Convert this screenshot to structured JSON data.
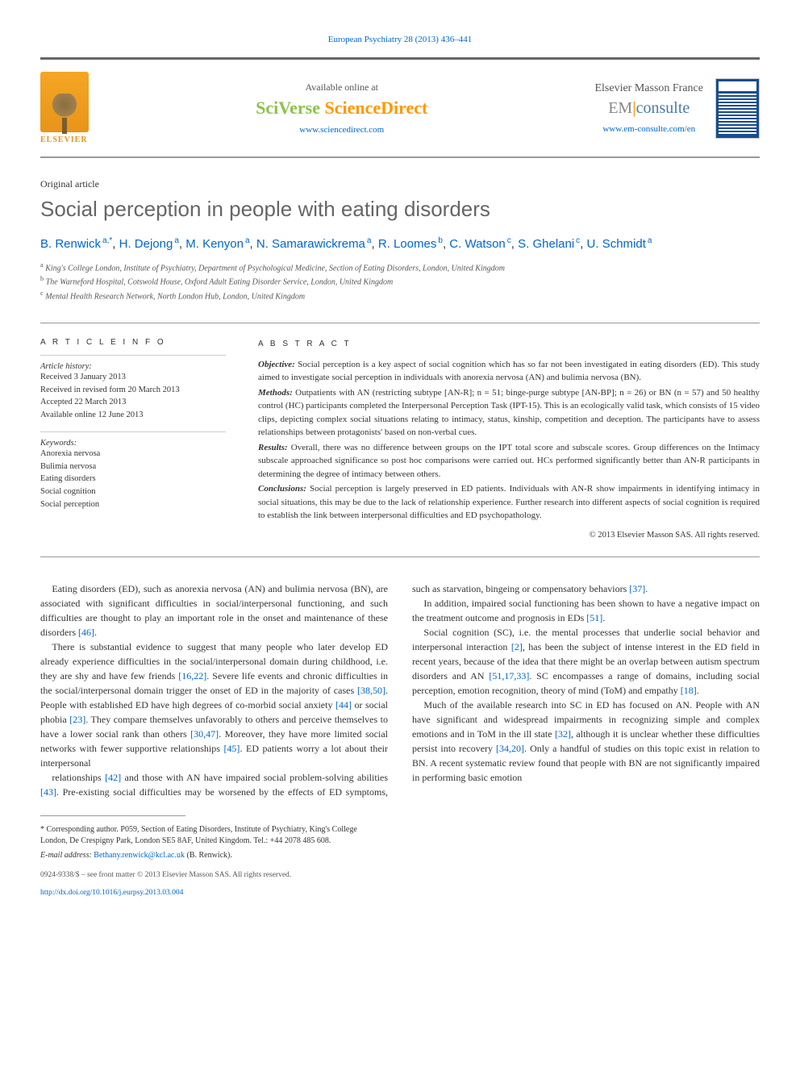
{
  "header": {
    "journal_ref": "European Psychiatry 28 (2013) 436–441"
  },
  "banner": {
    "elsevier": "ELSEVIER",
    "available": "Available online at",
    "sciverse_sci": "SciVerse ",
    "sciverse_direct": "ScienceDirect",
    "sciverse_url": "www.sciencedirect.com",
    "em_brand": "Elsevier Masson France",
    "em_em": "EM",
    "em_consulte": "consulte",
    "em_url": "www.em-consulte.com/en"
  },
  "article": {
    "type": "Original article",
    "title": "Social perception in people with eating disorders",
    "authors_html": "B. Renwick",
    "authors": [
      {
        "name": "B. Renwick",
        "aff": "a,*"
      },
      {
        "name": "H. Dejong",
        "aff": "a"
      },
      {
        "name": "M. Kenyon",
        "aff": "a"
      },
      {
        "name": "N. Samarawickrema",
        "aff": "a"
      },
      {
        "name": "R. Loomes",
        "aff": "b"
      },
      {
        "name": "C. Watson",
        "aff": "c"
      },
      {
        "name": "S. Ghelani",
        "aff": "c"
      },
      {
        "name": "U. Schmidt",
        "aff": "a"
      }
    ],
    "affiliations": {
      "a": "King's College London, Institute of Psychiatry, Department of Psychological Medicine, Section of Eating Disorders, London, United Kingdom",
      "b": "The Warneford Hospital, Cotswold House, Oxford Adult Eating Disorder Service, London, United Kingdom",
      "c": "Mental Health Research Network, North London Hub, London, United Kingdom"
    }
  },
  "info": {
    "heading": "A R T I C L E   I N F O",
    "history_label": "Article history:",
    "history": [
      "Received 3 January 2013",
      "Received in revised form 20 March 2013",
      "Accepted 22 March 2013",
      "Available online 12 June 2013"
    ],
    "keywords_label": "Keywords:",
    "keywords": [
      "Anorexia nervosa",
      "Bulimia nervosa",
      "Eating disorders",
      "Social cognition",
      "Social perception"
    ]
  },
  "abstract": {
    "heading": "A B S T R A C T",
    "sections": [
      {
        "label": "Objective:",
        "text": "Social perception is a key aspect of social cognition which has so far not been investigated in eating disorders (ED). This study aimed to investigate social perception in individuals with anorexia nervosa (AN) and bulimia nervosa (BN)."
      },
      {
        "label": "Methods:",
        "text": "Outpatients with AN (restricting subtype [AN-R]; n = 51; binge-purge subtype [AN-BP]; n = 26) or BN (n = 57) and 50 healthy control (HC) participants completed the Interpersonal Perception Task (IPT-15). This is an ecologically valid task, which consists of 15 video clips, depicting complex social situations relating to intimacy, status, kinship, competition and deception. The participants have to assess relationships between protagonists' based on non-verbal cues."
      },
      {
        "label": "Results:",
        "text": "Overall, there was no difference between groups on the IPT total score and subscale scores. Group differences on the Intimacy subscale approached significance so post hoc comparisons were carried out. HCs performed significantly better than AN-R participants in determining the degree of intimacy between others."
      },
      {
        "label": "Conclusions:",
        "text": "Social perception is largely preserved in ED patients. Individuals with AN-R show impairments in identifying intimacy in social situations, this may be due to the lack of relationship experience. Further research into different aspects of social cognition is required to establish the link between interpersonal difficulties and ED psychopathology."
      }
    ],
    "copyright": "© 2013 Elsevier Masson SAS. All rights reserved."
  },
  "body": {
    "paragraphs": [
      "Eating disorders (ED), such as anorexia nervosa (AN) and bulimia nervosa (BN), are associated with significant difficulties in social/interpersonal functioning, and such difficulties are thought to play an important role in the onset and maintenance of these disorders [46].",
      "There is substantial evidence to suggest that many people who later develop ED already experience difficulties in the social/interpersonal domain during childhood, i.e. they are shy and have few friends [16,22]. Severe life events and chronic difficulties in the social/interpersonal domain trigger the onset of ED in the majority of cases [38,50]. People with established ED have high degrees of co-morbid social anxiety [44] or social phobia [23]. They compare themselves unfavorably to others and perceive themselves to have a lower social rank than others [30,47]. Moreover, they have more limited social networks with fewer supportive relationships [45]. ED patients worry a lot about their interpersonal",
      "relationships [42] and those with AN have impaired social problem-solving abilities [43]. Pre-existing social difficulties may be worsened by the effects of ED symptoms, such as starvation, bingeing or compensatory behaviors [37].",
      "In addition, impaired social functioning has been shown to have a negative impact on the treatment outcome and prognosis in EDs [51].",
      "Social cognition (SC), i.e. the mental processes that underlie social behavior and interpersonal interaction [2], has been the subject of intense interest in the ED field in recent years, because of the idea that there might be an overlap between autism spectrum disorders and AN [51,17,33]. SC encompasses a range of domains, including social perception, emotion recognition, theory of mind (ToM) and empathy [18].",
      "Much of the available research into SC in ED has focused on AN. People with AN have significant and widespread impairments in recognizing simple and complex emotions and in ToM in the ill state [32], although it is unclear whether these difficulties persist into recovery [34,20]. Only a handful of studies on this topic exist in relation to BN. A recent systematic review found that people with BN are not significantly impaired in performing basic emotion"
    ]
  },
  "footnotes": {
    "corresponding": "* Corresponding author. P059, Section of Eating Disorders, Institute of Psychiatry, King's College London, De Crespigny Park, London SE5 8AF, United Kingdom. Tel.: +44 2078 485 608.",
    "email_label": "E-mail address:",
    "email": "Bethany.renwick@kcl.ac.uk",
    "email_name": "(B. Renwick).",
    "issn": "0924-9338/$ – see front matter © 2013 Elsevier Masson SAS. All rights reserved.",
    "doi": "http://dx.doi.org/10.1016/j.eurpsy.2013.03.004"
  }
}
